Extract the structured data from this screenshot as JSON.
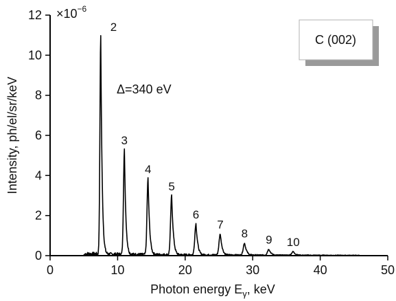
{
  "chart_data": {
    "type": "line",
    "xlabel_main": "Photon energy E",
    "xlabel_sub": "γ",
    "xlabel_suffix": ", keV",
    "ylabel": "Intensity, ph/el/sr/keV",
    "y_multiplier_base": "×10",
    "y_multiplier_exp": "−6",
    "xlim": [
      0,
      50
    ],
    "ylim": [
      0,
      12
    ],
    "x_ticks": [
      0,
      10,
      20,
      30,
      40,
      50
    ],
    "y_ticks": [
      0,
      2,
      4,
      6,
      8,
      10,
      12
    ],
    "grid": false,
    "legend": {
      "label": "C (002)",
      "position": "top-right"
    },
    "annotation": "Δ=340 eV",
    "series": [
      {
        "color": "#000000",
        "noise_range_x": [
          5.2,
          45.8
        ],
        "peaks": [
          {
            "x": 7.5,
            "y": 10.9,
            "label": "2"
          },
          {
            "x": 11.0,
            "y": 5.25,
            "label": "3"
          },
          {
            "x": 14.5,
            "y": 3.8,
            "label": "4"
          },
          {
            "x": 18.0,
            "y": 2.95,
            "label": "5"
          },
          {
            "x": 21.6,
            "y": 1.55,
            "label": "6"
          },
          {
            "x": 25.2,
            "y": 1.05,
            "label": "7"
          },
          {
            "x": 28.8,
            "y": 0.6,
            "label": "8"
          },
          {
            "x": 32.4,
            "y": 0.3,
            "label": "9"
          },
          {
            "x": 36.0,
            "y": 0.18,
            "label": "10"
          }
        ]
      }
    ]
  }
}
